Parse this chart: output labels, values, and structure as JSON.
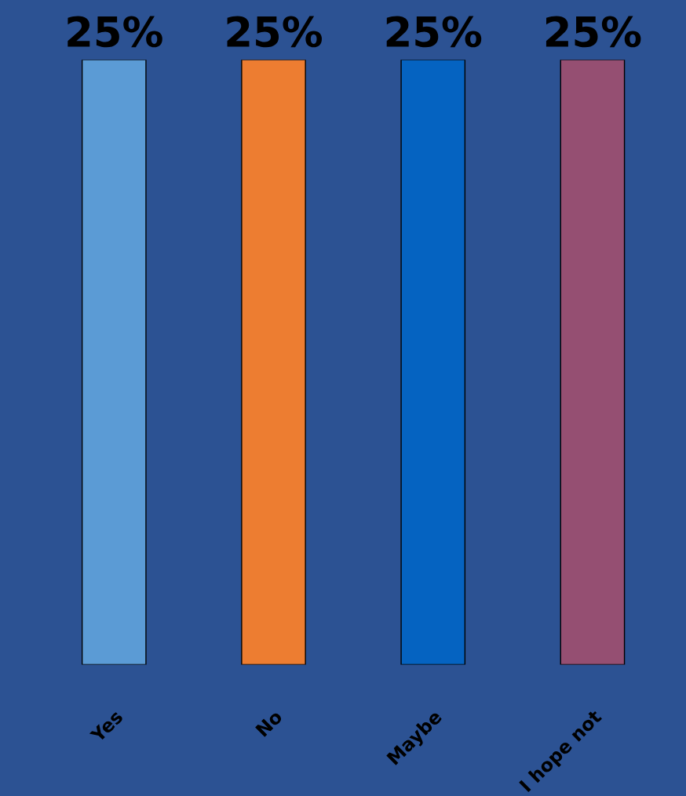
{
  "chart_data": {
    "type": "bar",
    "categories": [
      "Yes",
      "No",
      "Maybe",
      "I hope not"
    ],
    "values": [
      25,
      25,
      25,
      25
    ],
    "colors": [
      "#5b9bd5",
      "#ed7d31",
      "#0563c1",
      "#954f72"
    ],
    "value_labels": [
      "25%",
      "25%",
      "25%",
      "25%"
    ]
  }
}
